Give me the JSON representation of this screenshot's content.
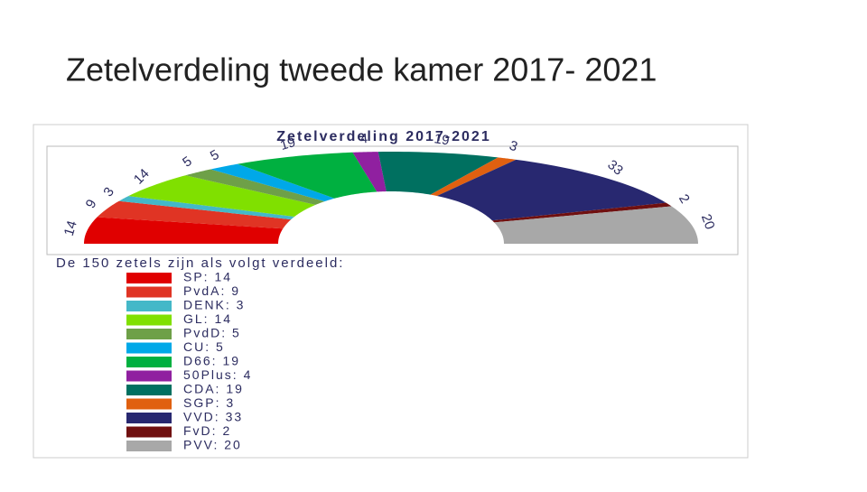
{
  "slide_title": "Zetelverdeling tweede kamer 2017- 2021",
  "chart_data": {
    "type": "semi-donut",
    "title": "Zetelverdeling 2017-2021",
    "subtitle": "De 150 zetels zijn als volgt verdeeld:",
    "categories": [
      "SP: 14",
      "PvdA: 9",
      "DENK: 3",
      "GL: 14",
      "PvdD: 5",
      "CU: 5",
      "D66: 19",
      "50Plus: 4",
      "CDA: 19",
      "SGP: 3",
      "VVD: 33",
      "FvD: 2",
      "PVV: 20"
    ],
    "values": [
      14,
      9,
      3,
      14,
      5,
      5,
      19,
      4,
      19,
      3,
      33,
      2,
      20
    ],
    "colors": [
      "#e00000",
      "#e03424",
      "#44b8c8",
      "#80e000",
      "#6ea048",
      "#00a8e8",
      "#00b040",
      "#9020a0",
      "#007060",
      "#e06010",
      "#282870",
      "#701010",
      "#a8a8a8"
    ]
  }
}
